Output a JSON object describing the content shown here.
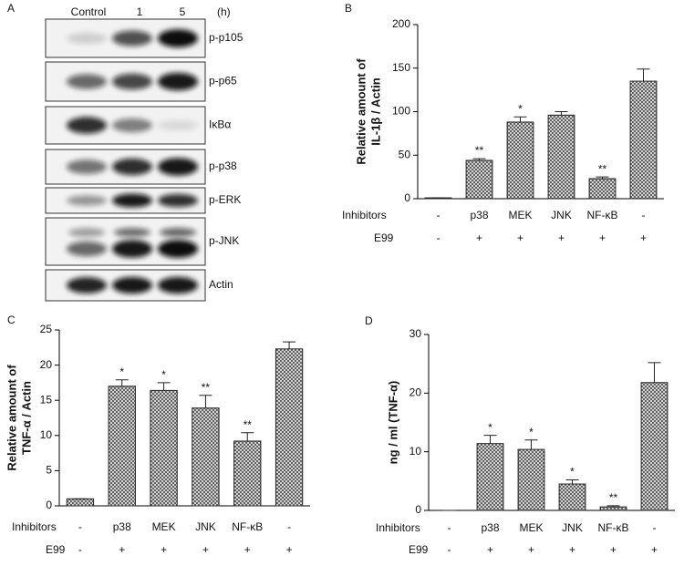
{
  "blot": {
    "panel": "A",
    "lanes": [
      "Control",
      "1",
      "5"
    ],
    "unit": "(h)",
    "proteins": [
      "p-p105",
      "p-p65",
      "IκBα",
      "p-p38",
      "p-ERK",
      "p-JNK",
      "Actin"
    ]
  },
  "chart_data": [
    {
      "type": "bar",
      "panel": "B",
      "ylabel": [
        "Relative amount of",
        "IL-1β / Actin"
      ],
      "category_label": "Inhibitors",
      "categories": [
        "-",
        "p38",
        "MEK",
        "JNK",
        "NF-κB",
        "-"
      ],
      "second_row": {
        "label": "E99",
        "values": [
          "-",
          "+",
          "+",
          "+",
          "+",
          "+"
        ]
      },
      "values": [
        1,
        44,
        88,
        96,
        23,
        135
      ],
      "errors": [
        0,
        2,
        6,
        4,
        2,
        14
      ],
      "annotations": [
        null,
        "**",
        "*",
        null,
        "**",
        null
      ],
      "color": "#555555",
      "ylim": [
        0,
        200
      ],
      "yticks": [
        0,
        50,
        100,
        150,
        200
      ]
    },
    {
      "type": "bar",
      "panel": "C",
      "ylabel": [
        "Relative amount of",
        "TNF-α / Actin"
      ],
      "category_label": "Inhibitors",
      "categories": [
        "-",
        "p38",
        "MEK",
        "JNK",
        "NF-κB",
        "-"
      ],
      "second_row": {
        "label": "E99",
        "values": [
          "-",
          "+",
          "+",
          "+",
          "+",
          "+"
        ]
      },
      "values": [
        1,
        17,
        16.4,
        13.9,
        9.2,
        22.3
      ],
      "errors": [
        0,
        0.9,
        1.1,
        1.8,
        1.2,
        1.0
      ],
      "annotations": [
        null,
        "*",
        "*",
        "**",
        "**",
        null
      ],
      "color": "#555555",
      "ylim": [
        0,
        25
      ],
      "yticks": [
        0,
        5,
        10,
        15,
        20,
        25
      ]
    },
    {
      "type": "bar",
      "panel": "D",
      "ylabel": [
        "ng / ml (TNF-α)"
      ],
      "category_label": "Inhibitors",
      "categories": [
        "-",
        "p38",
        "MEK",
        "JNK",
        "NF-κB",
        "-"
      ],
      "second_row": {
        "label": "E99",
        "values": [
          "-",
          "+",
          "+",
          "+",
          "+",
          "+"
        ]
      },
      "values": [
        0,
        11.4,
        10.4,
        4.5,
        0.6,
        21.8
      ],
      "errors": [
        0,
        1.4,
        1.6,
        0.7,
        0.2,
        3.4
      ],
      "annotations": [
        null,
        "*",
        "*",
        "*",
        "**",
        null
      ],
      "color": "#555555",
      "ylim": [
        0,
        30
      ],
      "yticks": [
        0,
        10,
        20,
        30
      ]
    }
  ]
}
